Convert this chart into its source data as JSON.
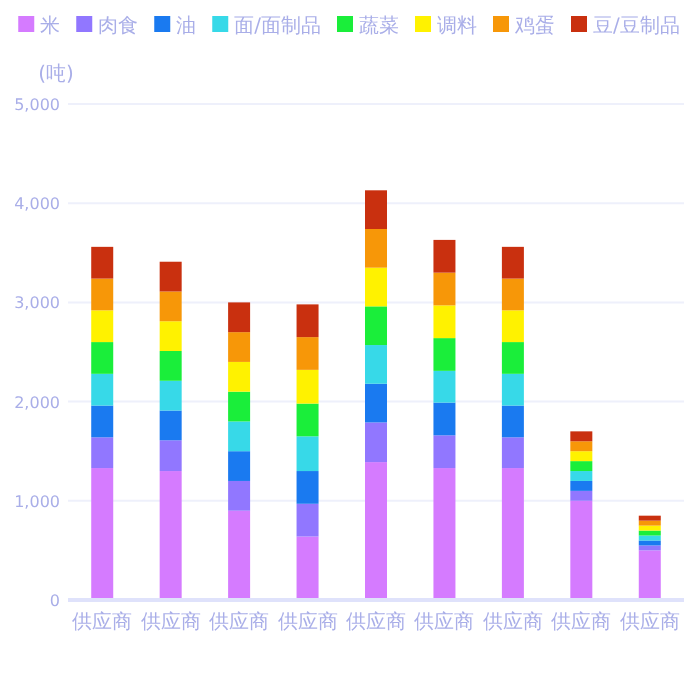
{
  "chart_data": {
    "type": "bar",
    "stacked": true,
    "ylabel": "(吨)",
    "categories": [
      "供应商",
      "供应商",
      "供应商",
      "供应商",
      "供应商",
      "供应商",
      "供应商",
      "供应商",
      "供应商"
    ],
    "series": [
      {
        "name": "米",
        "color": "#d57bff",
        "values": [
          1330,
          1300,
          900,
          640,
          1390,
          1330,
          1330,
          1000,
          500
        ]
      },
      {
        "name": "肉食",
        "color": "#9177ff",
        "values": [
          310,
          310,
          300,
          330,
          400,
          330,
          310,
          100,
          50
        ]
      },
      {
        "name": "油",
        "color": "#1a7af0",
        "values": [
          320,
          300,
          300,
          330,
          390,
          330,
          320,
          100,
          50
        ]
      },
      {
        "name": "面/面制品",
        "color": "#37d9e8",
        "values": [
          320,
          300,
          300,
          350,
          390,
          320,
          320,
          100,
          50
        ]
      },
      {
        "name": "蔬菜",
        "color": "#1aee3a",
        "values": [
          320,
          300,
          300,
          330,
          390,
          330,
          320,
          100,
          50
        ]
      },
      {
        "name": "调料",
        "color": "#fff200",
        "values": [
          320,
          300,
          300,
          340,
          390,
          330,
          320,
          100,
          50
        ]
      },
      {
        "name": "鸡蛋",
        "color": "#f79708",
        "values": [
          320,
          300,
          300,
          330,
          390,
          330,
          320,
          100,
          50
        ]
      },
      {
        "name": "豆/豆制品",
        "color": "#c9300f",
        "values": [
          320,
          300,
          300,
          330,
          390,
          330,
          320,
          100,
          50
        ]
      }
    ],
    "ylim": [
      0,
      5000
    ],
    "yticks": [
      0,
      {
        "value": 1000,
        "label": "1,000"
      },
      {
        "value": 2000,
        "label": "2,000"
      },
      {
        "value": 3000,
        "label": "3,000"
      },
      {
        "value": 4000,
        "label": "4,000"
      },
      {
        "value": 5000,
        "label": "5,000"
      }
    ],
    "grid": "y",
    "legend": "top"
  }
}
